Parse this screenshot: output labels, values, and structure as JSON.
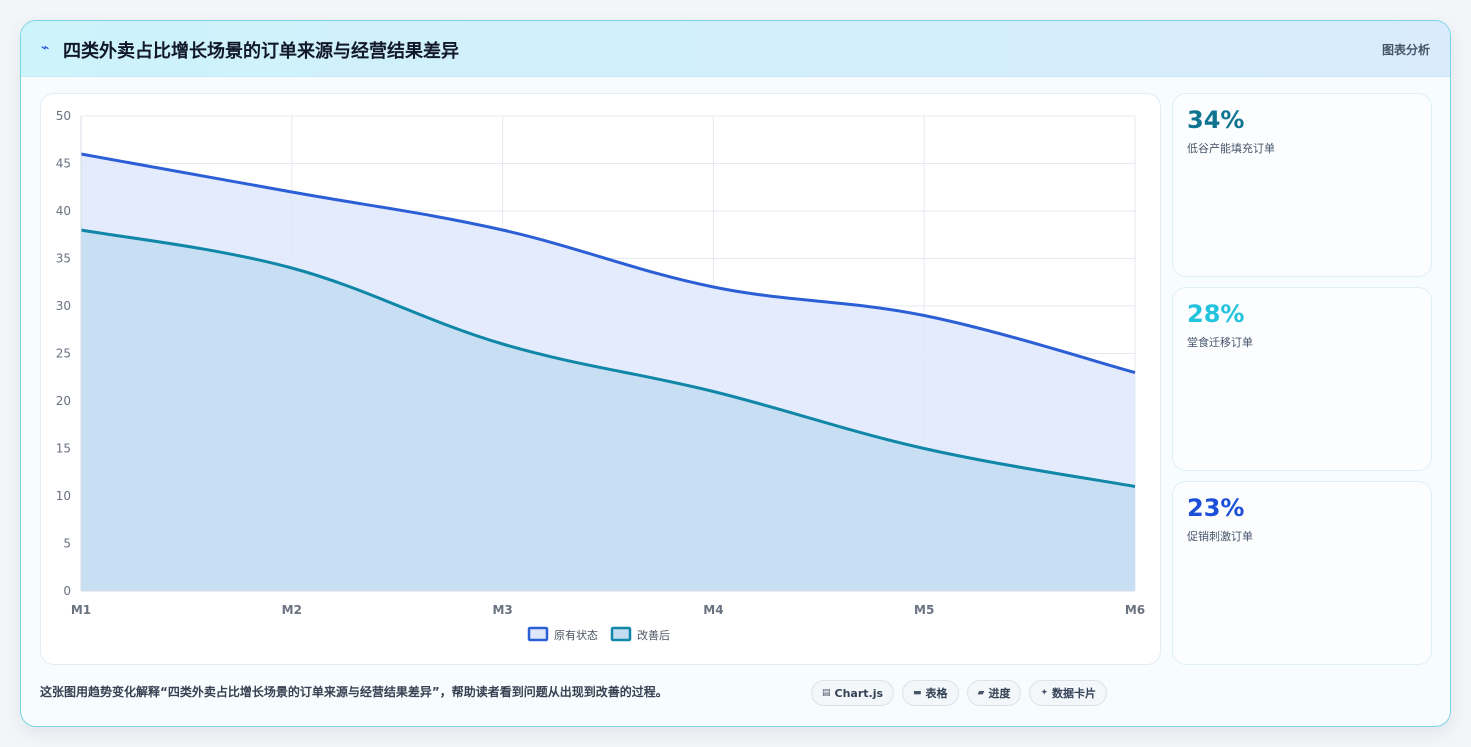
{
  "header": {
    "title": "四类外卖占比增长场景的订单来源与经营结果差异",
    "tag": "图表分析"
  },
  "stats": [
    {
      "value": "34%",
      "label": "低谷产能填充订单",
      "color": "#0e7490"
    },
    {
      "value": "28%",
      "label": "堂食迁移订单",
      "color": "#22c3dc"
    },
    {
      "value": "23%",
      "label": "促销刺激订单",
      "color": "#1d4ed8"
    }
  ],
  "footer": {
    "description": "这张图用趋势变化解释“四类外卖占比增长场景的订单来源与经营结果差异”，帮助读者看到问题从出现到改善的过程。",
    "chips": [
      {
        "icon": "chart-icon",
        "label": "Chart.js"
      },
      {
        "icon": "table-icon",
        "label": "表格"
      },
      {
        "icon": "progress-icon",
        "label": "进度"
      },
      {
        "icon": "sparkle-icon",
        "label": "数据卡片"
      }
    ]
  },
  "chart_data": {
    "type": "area",
    "categories": [
      "M1",
      "M2",
      "M3",
      "M4",
      "M5",
      "M6"
    ],
    "series": [
      {
        "name": "原有状态",
        "values": [
          46,
          42,
          38,
          32,
          29,
          23
        ],
        "color": "#2c5fd6",
        "fill": "#dfe8fb"
      },
      {
        "name": "改善后",
        "values": [
          38,
          34,
          26,
          21,
          15,
          11
        ],
        "color": "#1187a8",
        "fill": "#c3dcf1"
      }
    ],
    "ylim": [
      0,
      50
    ],
    "yticks": [
      0,
      5,
      10,
      15,
      20,
      25,
      30,
      35,
      40,
      45,
      50
    ],
    "grid": true,
    "legend": "bottom"
  }
}
